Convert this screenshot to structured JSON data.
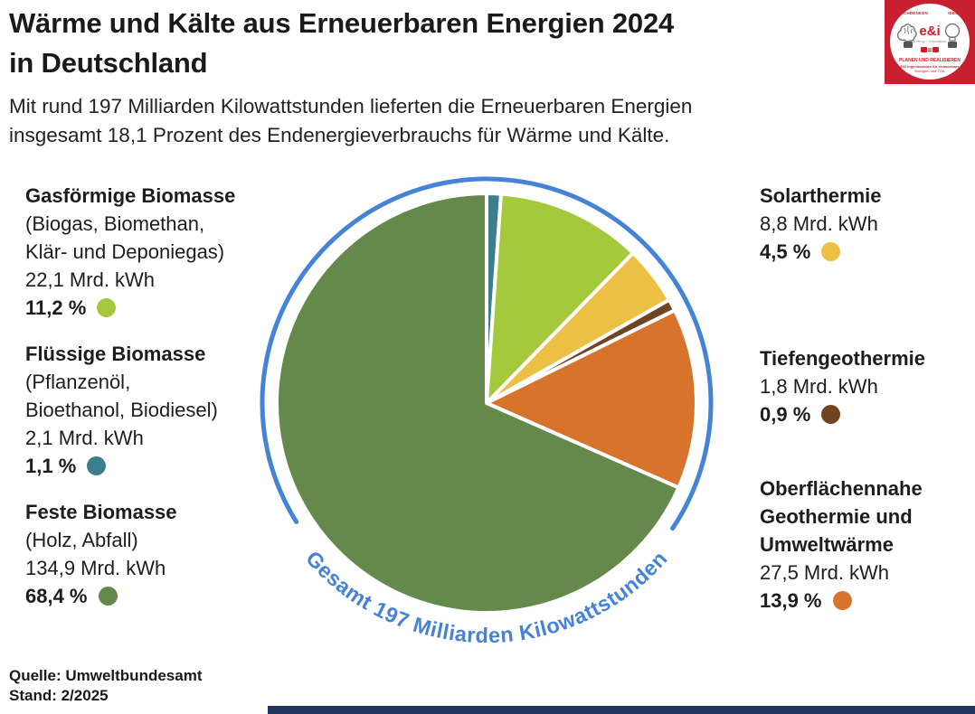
{
  "header": {
    "title": "Wärme und Kälte aus Erneuerbaren Energien 2024\nin Deutschland",
    "subtitle": "Mit rund 197 Milliarden Kilowattstunden lieferten die Erneuerbaren Energien\ninsgesamt 18,1 Prozent des Endenergieverbrauchs für Wärme und Kälte."
  },
  "logo": {
    "top_left": "NACHDENKEN",
    "top_right": "IDEEN",
    "brand": "e&i",
    "brand_sub": "Energy + Innovation",
    "line1": "PLANEN UND REALISIEREN",
    "line2": "E&I Ingenieurbüro für erneuerbare",
    "line3": "Energien und TGA"
  },
  "chart_data": {
    "type": "pie",
    "title": "Wärme und Kälte aus Erneuerbaren Energien 2024 in Deutschland",
    "total_label": "Gesamt 197 Milliarden Kilowattstunden",
    "total_value_mrd_kwh": 197,
    "share_of_final_energy_percent": 18.1,
    "unit": "Mrd. kWh",
    "start_angle_deg": 0,
    "direction": "clockwise-from-top",
    "ring_color": "#4583d7",
    "slices": [
      {
        "label": "Flüssige Biomasse",
        "sublabel": "(Pflanzenöl,\nBioethanol, Biodiesel)",
        "amount": "2,1 Mrd. kWh",
        "value_mrd_kwh": 2.1,
        "percent": 1.1,
        "percent_label": "1,1 %",
        "color": "#3b7f8e"
      },
      {
        "label": "Gasförmige Biomasse",
        "sublabel": "(Biogas, Biomethan,\nKlär- und Deponiegas)",
        "amount": "22,1 Mrd. kWh",
        "value_mrd_kwh": 22.1,
        "percent": 11.2,
        "percent_label": "11,2 %",
        "color": "#a4c93c"
      },
      {
        "label": "Solarthermie",
        "sublabel": "",
        "amount": "8,8 Mrd. kWh",
        "value_mrd_kwh": 8.8,
        "percent": 4.5,
        "percent_label": "4,5 %",
        "color": "#ecc044"
      },
      {
        "label": "Tiefengeothermie",
        "sublabel": "",
        "amount": "1,8 Mrd. kWh",
        "value_mrd_kwh": 1.8,
        "percent": 0.9,
        "percent_label": "0,9 %",
        "color": "#6e4423"
      },
      {
        "label": "Oberflächennahe\nGeothermie und\nUmweltwärme",
        "sublabel": "",
        "amount": "27,5 Mrd. kWh",
        "value_mrd_kwh": 27.5,
        "percent": 13.9,
        "percent_label": "13,9 %",
        "color": "#d8732c"
      },
      {
        "label": "Feste Biomasse",
        "sublabel": "(Holz, Abfall)",
        "amount": "134,9 Mrd. kWh",
        "value_mrd_kwh": 134.9,
        "percent": 68.4,
        "percent_label": "68,4 %",
        "color": "#65894b"
      }
    ]
  },
  "footer": {
    "source": "Quelle: Umweltbundesamt",
    "date": "Stand: 2/2025"
  }
}
